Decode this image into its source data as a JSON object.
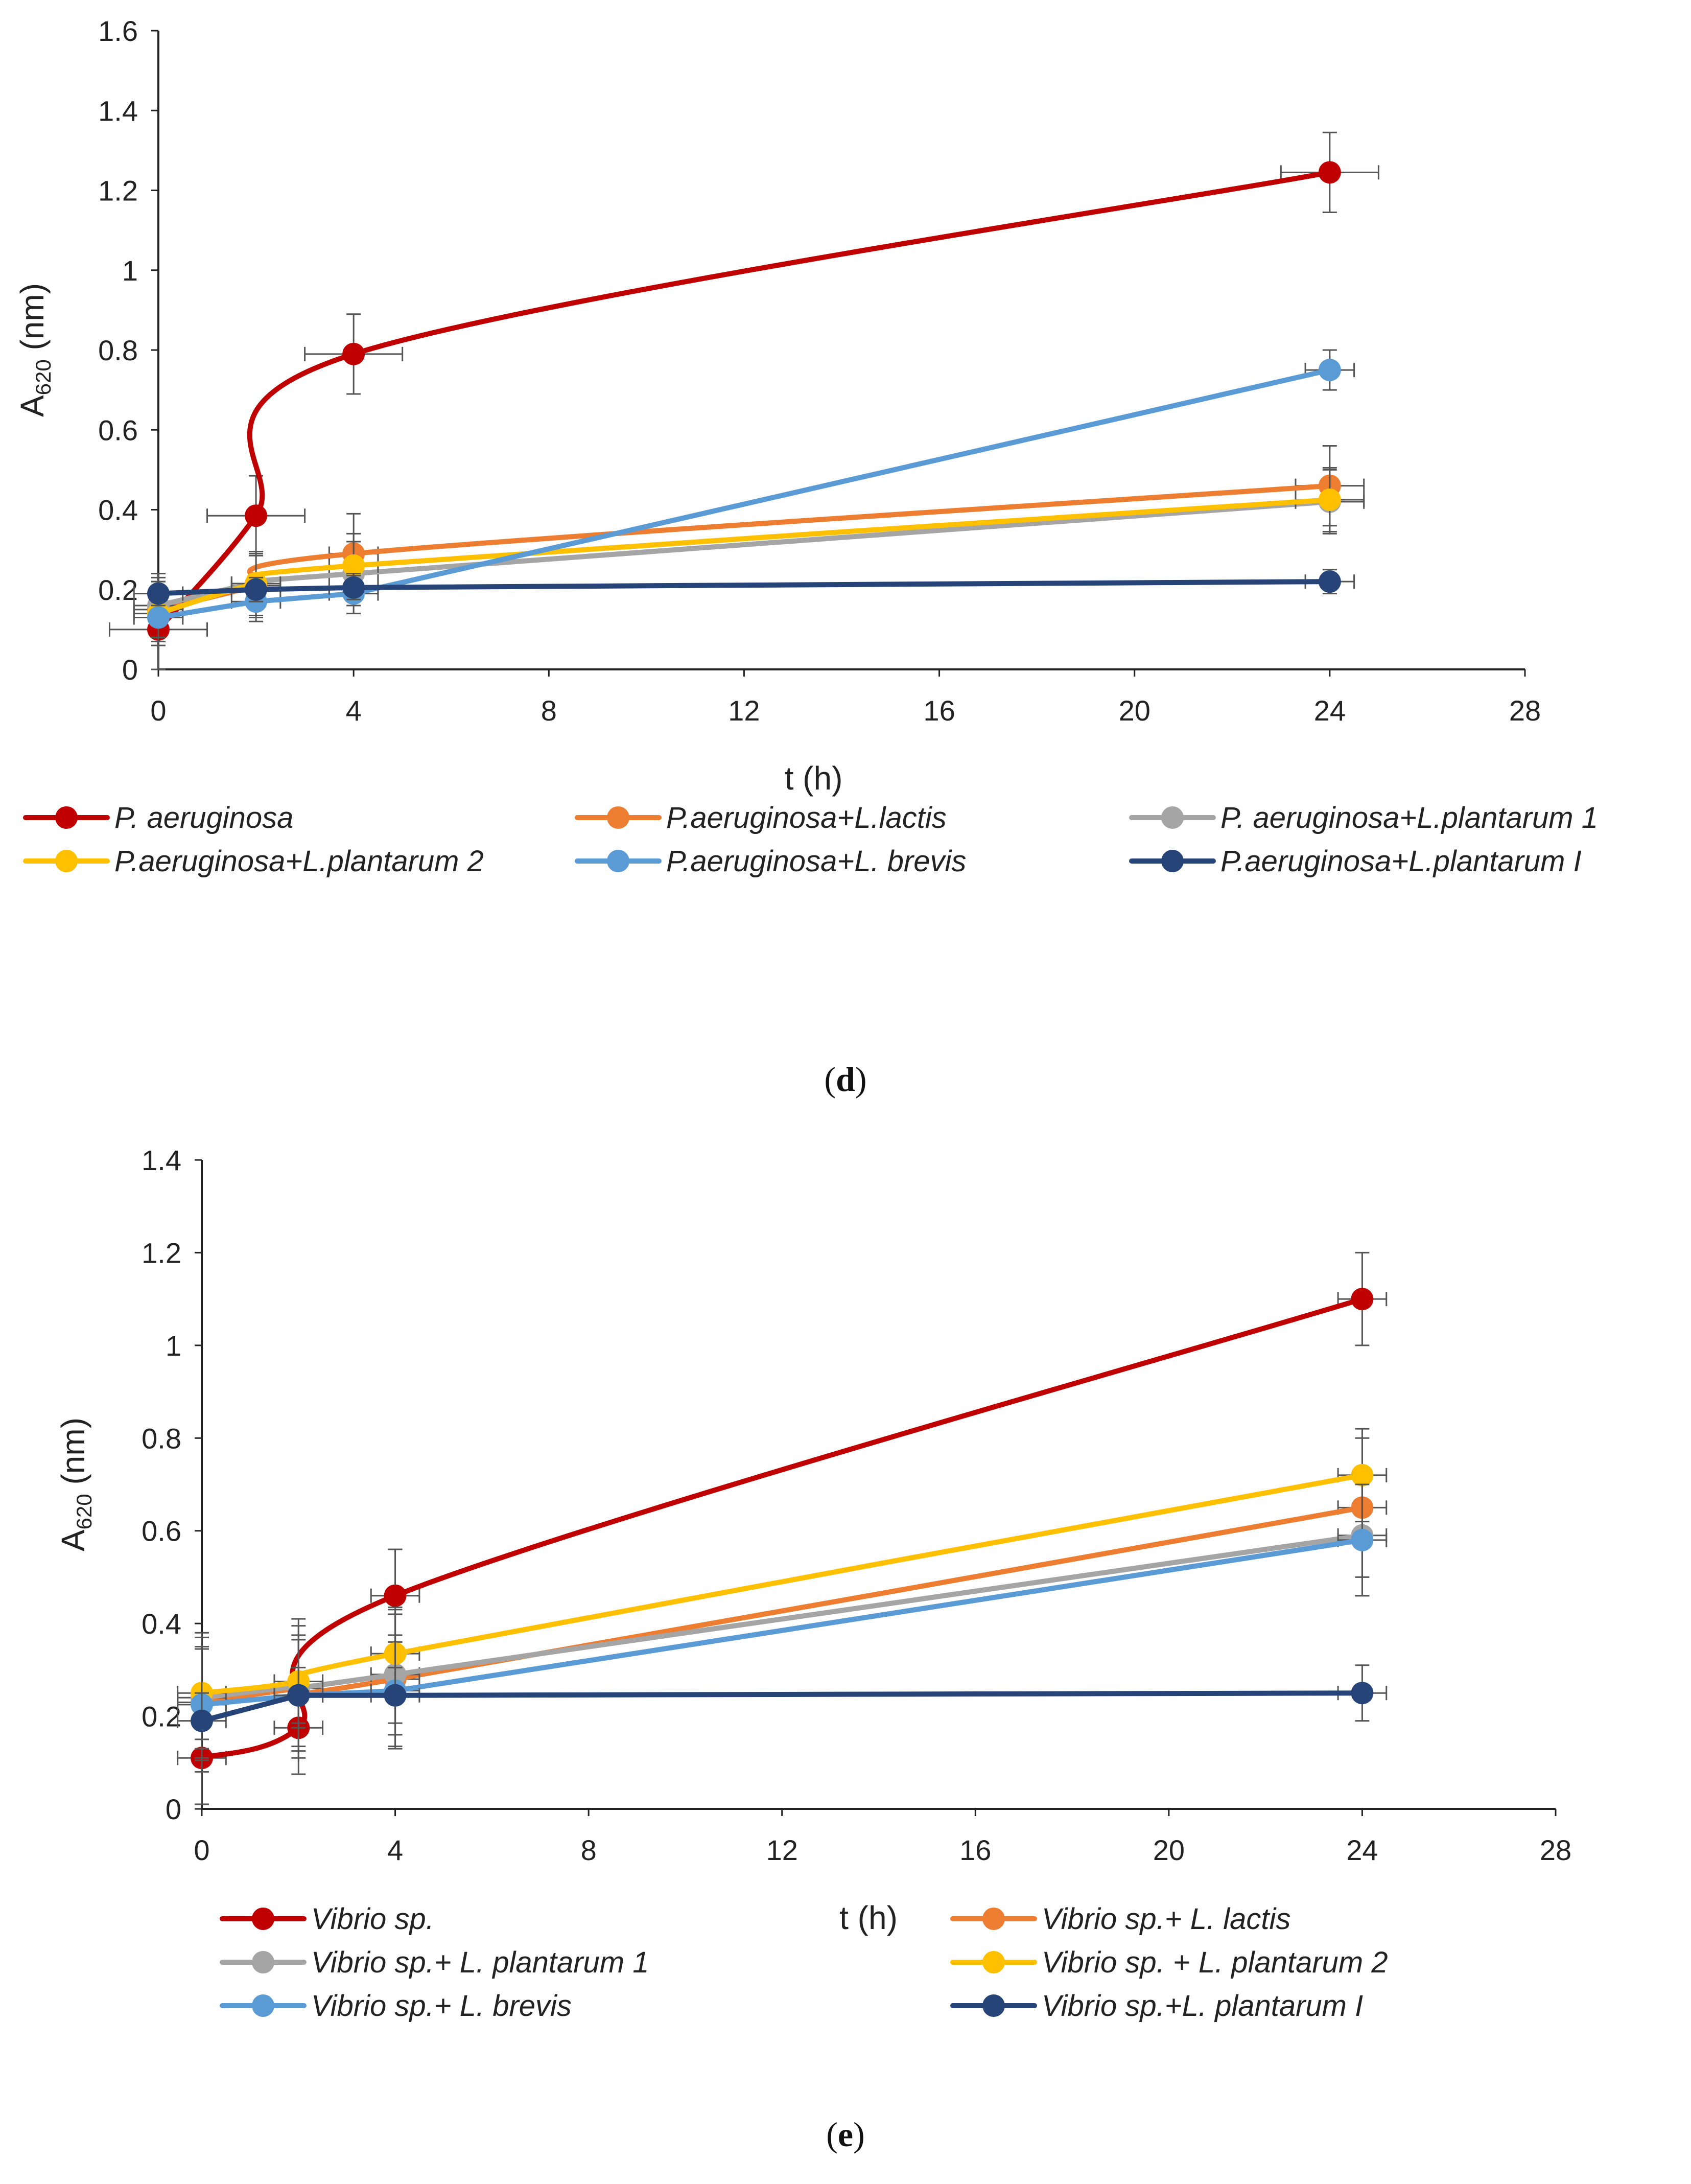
{
  "colors": {
    "red": "#C00000",
    "orange": "#ED7D31",
    "gray": "#A5A5A5",
    "yellow": "#FFC000",
    "lightblue": "#5B9BD5",
    "navy": "#264478",
    "errorbar": "#555555",
    "axis": "#222222"
  },
  "chart_data": [
    {
      "type": "line",
      "panel_label": "d",
      "xlabel": "t (h)",
      "ylabel_main": "A",
      "ylabel_sub": "620",
      "ylabel_unit": " (nm)",
      "xlim": [
        0,
        28
      ],
      "ylim": [
        0,
        1.6
      ],
      "xticks": [
        "0",
        "4",
        "8",
        "12",
        "16",
        "20",
        "24",
        "28"
      ],
      "yticks": [
        "0",
        "0.2",
        "0.4",
        "0.6",
        "0.8",
        "1",
        "1.2",
        "1.4",
        "1.6"
      ],
      "series": [
        {
          "name": "P. aeruginosa",
          "color": "red",
          "smooth": true,
          "x": [
            0,
            2,
            4,
            24
          ],
          "y": [
            0.1,
            0.385,
            0.79,
            1.245
          ],
          "yerr": [
            0.1,
            0.1,
            0.1,
            0.1
          ],
          "xerr": [
            1,
            1,
            1,
            1
          ]
        },
        {
          "name": "P.aeruginosa+L.lactis",
          "color": "orange",
          "smooth": true,
          "x": [
            0,
            2,
            4,
            24
          ],
          "y": [
            0.15,
            0.21,
            0.29,
            0.46
          ],
          "yerr": [
            0.08,
            0.08,
            0.1,
            0.1
          ],
          "xerr": [
            0.5,
            0.5,
            0.5,
            0.7
          ]
        },
        {
          "name": "P. aeruginosa+L.plantarum 1",
          "color": "gray",
          "smooth": true,
          "x": [
            0,
            2,
            4,
            24
          ],
          "y": [
            0.16,
            0.215,
            0.24,
            0.42
          ],
          "yerr": [
            0.08,
            0.08,
            0.08,
            0.08
          ],
          "xerr": [
            0.5,
            0.5,
            0.5,
            0.7
          ]
        },
        {
          "name": "P.aeruginosa+L.plantarum 2",
          "color": "yellow",
          "smooth": true,
          "x": [
            0,
            2,
            4,
            24
          ],
          "y": [
            0.14,
            0.215,
            0.26,
            0.425
          ],
          "yerr": [
            0.08,
            0.08,
            0.08,
            0.08
          ],
          "xerr": [
            0.5,
            0.5,
            0.5,
            0.7
          ]
        },
        {
          "name": "P.aeruginosa+L. brevis",
          "color": "lightblue",
          "smooth": false,
          "x": [
            0,
            2,
            4,
            24
          ],
          "y": [
            0.13,
            0.17,
            0.19,
            0.75
          ],
          "yerr": [
            0.05,
            0.05,
            0.05,
            0.05
          ],
          "xerr": [
            0.5,
            0.5,
            0.5,
            0.5
          ]
        },
        {
          "name": "P.aeruginosa+L.plantarum I",
          "color": "navy",
          "smooth": false,
          "x": [
            0,
            2,
            4,
            24
          ],
          "y": [
            0.19,
            0.2,
            0.205,
            0.22
          ],
          "yerr": [
            0.03,
            0.03,
            0.03,
            0.03
          ],
          "xerr": [
            0.5,
            0.5,
            0.5,
            0.5
          ]
        }
      ]
    },
    {
      "type": "line",
      "panel_label": "e",
      "xlabel": "t (h)",
      "ylabel_main": "A",
      "ylabel_sub": "620",
      "ylabel_unit": " (nm)",
      "xlim": [
        0,
        28
      ],
      "ylim": [
        0,
        1.4
      ],
      "xticks": [
        "0",
        "4",
        "8",
        "12",
        "16",
        "20",
        "24",
        "28"
      ],
      "yticks": [
        "0",
        "0.2",
        "0.4",
        "0.6",
        "0.8",
        "1",
        "1.2",
        "1.4"
      ],
      "series": [
        {
          "name": "Vibrio sp.",
          "color": "red",
          "smooth": true,
          "x": [
            0,
            2,
            4,
            24
          ],
          "y": [
            0.11,
            0.175,
            0.46,
            1.1
          ],
          "yerr": [
            0.1,
            0.1,
            0.1,
            0.1
          ],
          "xerr": [
            0.5,
            0.5,
            0.5,
            0.5
          ]
        },
        {
          "name": "Vibrio sp.+ L. lactis",
          "color": "orange",
          "smooth": true,
          "x": [
            0,
            2,
            4,
            24
          ],
          "y": [
            0.23,
            0.26,
            0.28,
            0.65
          ],
          "yerr": [
            0.15,
            0.15,
            0.15,
            0.15
          ],
          "xerr": [
            0.5,
            0.5,
            0.5,
            0.5
          ]
        },
        {
          "name": "Vibrio sp.+ L. plantarum 1",
          "color": "gray",
          "smooth": true,
          "x": [
            0,
            2,
            4,
            24
          ],
          "y": [
            0.24,
            0.265,
            0.29,
            0.59
          ],
          "yerr": [
            0.13,
            0.13,
            0.13,
            0.13
          ],
          "xerr": [
            0.5,
            0.5,
            0.5,
            0.5
          ]
        },
        {
          "name": "Vibrio sp. + L. plantarum 2",
          "color": "yellow",
          "smooth": true,
          "x": [
            0,
            2,
            4,
            24
          ],
          "y": [
            0.25,
            0.275,
            0.335,
            0.72
          ],
          "yerr": [
            0.1,
            0.1,
            0.1,
            0.1
          ],
          "xerr": [
            0.5,
            0.5,
            0.5,
            0.5
          ]
        },
        {
          "name": "Vibrio sp.+ L. brevis",
          "color": "lightblue",
          "smooth": false,
          "x": [
            0,
            2,
            4,
            24
          ],
          "y": [
            0.225,
            0.245,
            0.255,
            0.58
          ],
          "yerr": [
            0.12,
            0.12,
            0.12,
            0.12
          ],
          "xerr": [
            0.5,
            0.5,
            0.5,
            0.5
          ]
        },
        {
          "name": "Vibrio sp.+L. plantarum I",
          "color": "navy",
          "smooth": false,
          "x": [
            0,
            2,
            4,
            24
          ],
          "y": [
            0.19,
            0.245,
            0.245,
            0.25
          ],
          "yerr": [
            0.06,
            0.06,
            0.06,
            0.06
          ],
          "xerr": [
            0.5,
            0.5,
            0.5,
            0.5
          ]
        }
      ]
    }
  ]
}
